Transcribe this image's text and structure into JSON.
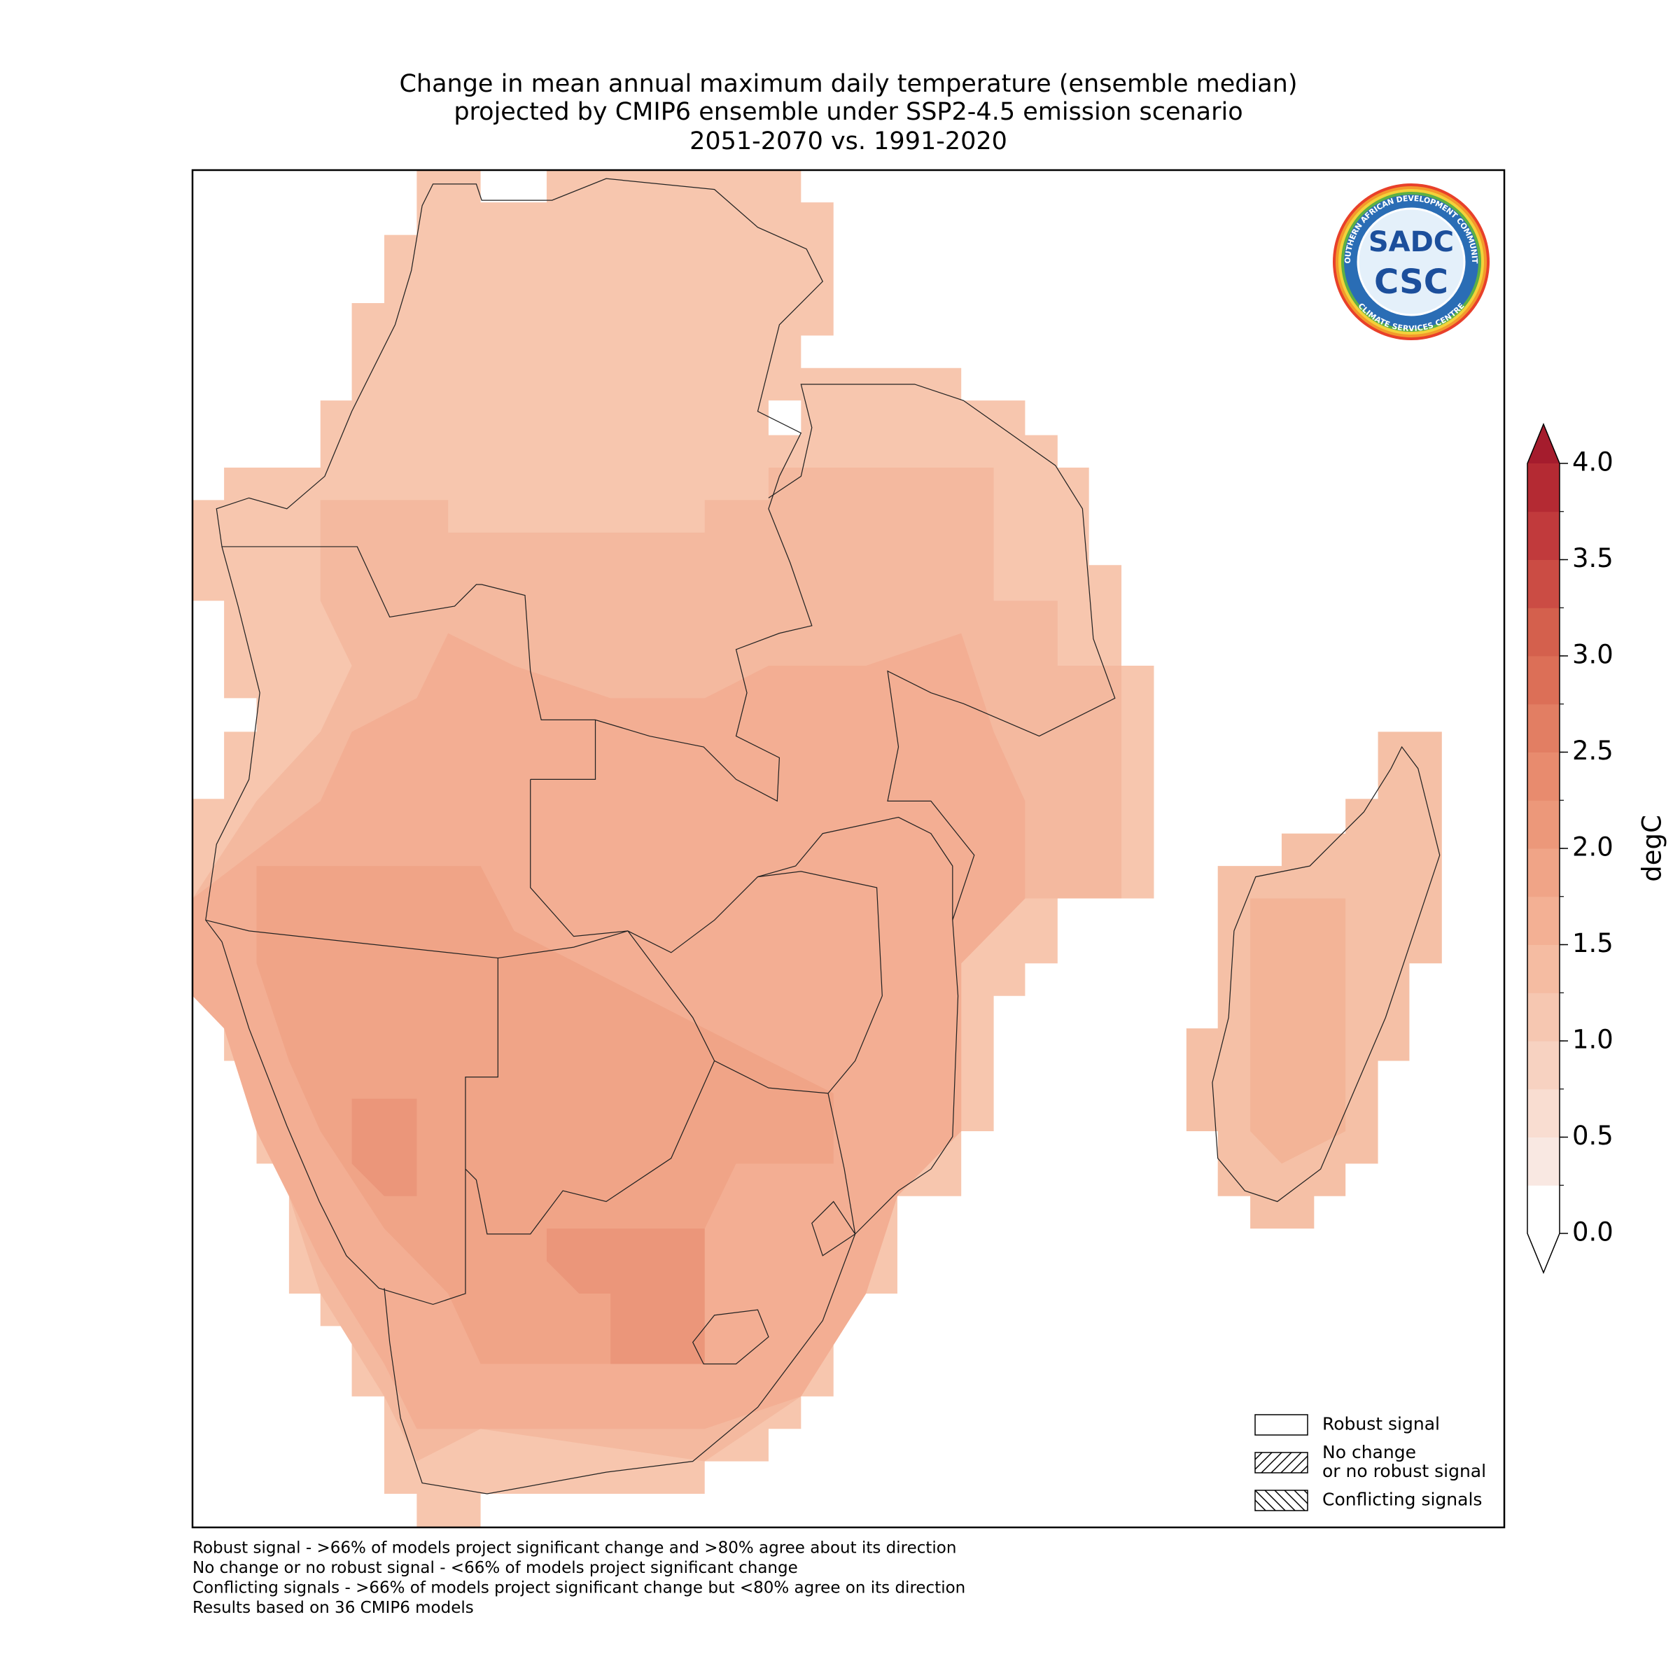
{
  "chart_data": {
    "type": "map",
    "title": [
      "Change in mean annual maximum daily temperature (ensemble median)",
      "projected by CMIP6 ensemble under SSP2-4.5 emission scenario",
      "2051-2070 vs. 1991-2020"
    ],
    "colorbar": {
      "label": "degC",
      "ylim": [
        0,
        4
      ],
      "yticks": [
        {
          "value": 0,
          "label": "0.0"
        },
        {
          "value": 0.5,
          "label": "0.5"
        },
        {
          "value": 1,
          "label": "1.0"
        },
        {
          "value": 1.5,
          "label": "1.5"
        },
        {
          "value": 2,
          "label": "2.0"
        },
        {
          "value": 2.5,
          "label": "2.5"
        },
        {
          "value": 3,
          "label": "3.0"
        },
        {
          "value": 3.5,
          "label": "3.5"
        },
        {
          "value": 4,
          "label": "4.0"
        }
      ],
      "colors": [
        "#ffffff",
        "#f9e8e2",
        "#f9ddd1",
        "#f7d2c1",
        "#f6c7b1",
        "#f5bca2",
        "#f3b094",
        "#f0a487",
        "#ec987a",
        "#e88b6e",
        "#e27e63",
        "#dc6f57",
        "#d4604d",
        "#cb4c44",
        "#c13a3c",
        "#b42a33"
      ],
      "over_color": "#a51c2d"
    },
    "legend": {
      "position": "lower right",
      "items": [
        {
          "label": [
            "Robust signal"
          ],
          "hatch": "none"
        },
        {
          "label": [
            "No change",
            "or no robust signal"
          ],
          "hatch": "/"
        },
        {
          "label": [
            "Conflicting signals"
          ],
          "hatch": "\\"
        }
      ]
    },
    "notes": [
      "Robust signal - >66% of models project significant change and >80% agree about its direction",
      "No change or no robust signal - <66% of models project significant change",
      "Conflicting signals - >66% of models project significant change but <80% agree on its direction",
      "Results based on 36 CMIP6 models"
    ],
    "logo": {
      "ring_top": "SOUTHERN AFRICAN DEVELOPMENT COMMUNITY",
      "ring_bottom": "CLIMATE SERVICES CENTRE",
      "lines": [
        "SADC",
        "CSC"
      ]
    }
  }
}
